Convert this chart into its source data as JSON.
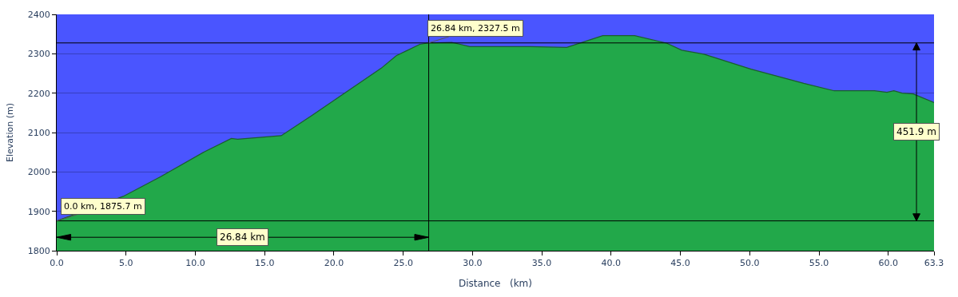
{
  "chart_data": {
    "type": "area",
    "xlabel": "Distance   (km)",
    "ylabel": "Elevation (m)",
    "x": [
      0,
      4.8,
      7.5,
      10.7,
      12.6,
      13.05,
      16.2,
      18.4,
      21.1,
      23.4,
      24.5,
      26.2,
      26.84,
      28.5,
      29.8,
      34.2,
      36.8,
      39.4,
      41.7,
      44.0,
      45.1,
      46.7,
      50.1,
      53.9,
      56.1,
      59.0,
      59.9,
      60.4,
      61.0,
      61.8,
      63.3
    ],
    "series": [
      {
        "color": "#22a84a",
        "values": [
          1875.7,
          1938,
          1988,
          2052,
          2085,
          2083,
          2092,
          2143,
          2208,
          2263,
          2295,
          2324,
          2327.5,
          2329,
          2318,
          2318,
          2316,
          2346,
          2346,
          2327,
          2309,
          2299,
          2261,
          2225,
          2206,
          2206,
          2202,
          2206,
          2200,
          2198,
          2176
        ]
      }
    ],
    "xlim": [
      0,
      63.3
    ],
    "xticks": [
      {
        "value": 0,
        "label": "0.0"
      },
      {
        "value": 5,
        "label": "5.0"
      },
      {
        "value": 10,
        "label": "10.0"
      },
      {
        "value": 15,
        "label": "15.0"
      },
      {
        "value": 20,
        "label": "20.0"
      },
      {
        "value": 25,
        "label": "25.0"
      },
      {
        "value": 30,
        "label": "30.0"
      },
      {
        "value": 35,
        "label": "35.0"
      },
      {
        "value": 40,
        "label": "40.0"
      },
      {
        "value": 45,
        "label": "45.0"
      },
      {
        "value": 50,
        "label": "50.0"
      },
      {
        "value": 55,
        "label": "55.0"
      },
      {
        "value": 60,
        "label": "60.0"
      },
      63.3
    ],
    "ylim": [
      1800,
      2400
    ],
    "yticks": [
      1800,
      1900,
      2000,
      2100,
      2200,
      2300,
      2400
    ],
    "grid": "y",
    "ref_lines": [
      {
        "axis": "y",
        "value": 1875.7,
        "color": "#000000"
      },
      {
        "axis": "y",
        "value": 2327.5,
        "color": "#000000"
      },
      {
        "axis": "x",
        "value": 26.84,
        "color": "#000000"
      }
    ],
    "annotations": [
      {
        "text": "0.0 km, 1875.7 m",
        "x": 0,
        "y": 1875.7
      },
      {
        "text": "26.84 km, 2327.5 m",
        "x": 26.84,
        "y": 2327.5
      },
      "26.84 km",
      "451.9 m"
    ]
  }
}
